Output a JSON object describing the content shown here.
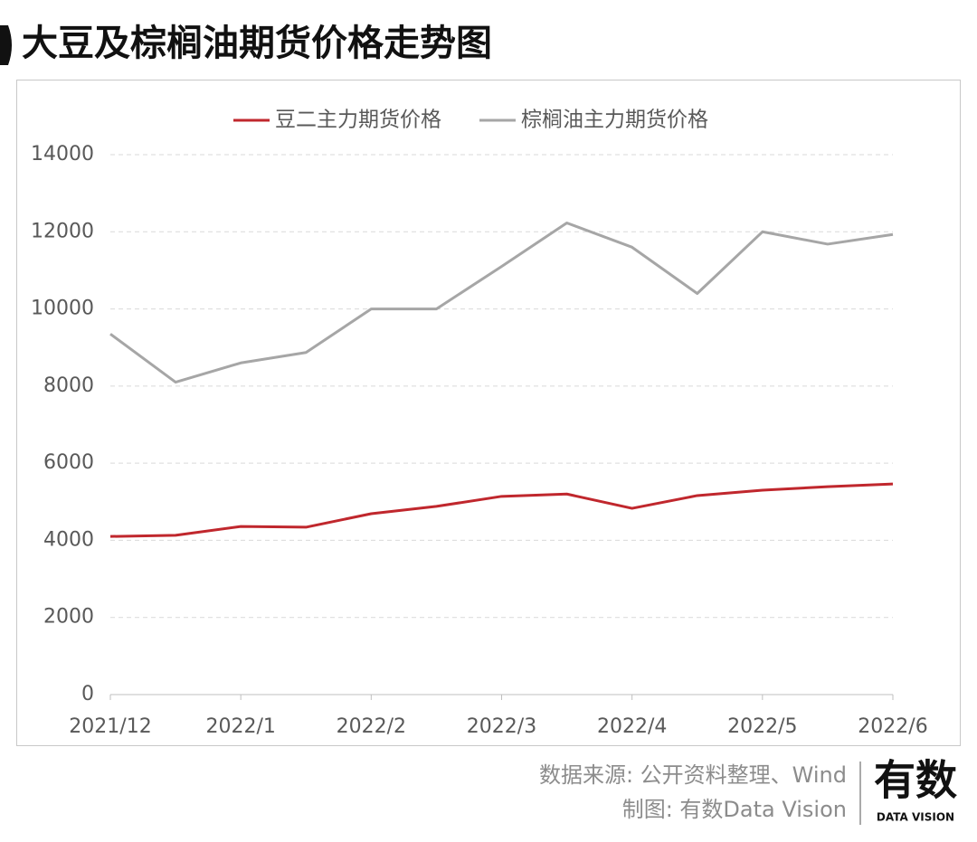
{
  "chart_data": {
    "type": "line",
    "title": "大豆及棕榈油期货价格走势图",
    "categories": [
      "2021/12",
      null,
      "2022/1",
      null,
      "2022/2",
      null,
      "2022/3",
      null,
      "2022/4",
      null,
      "2022/5",
      null,
      "2022/6"
    ],
    "series": [
      {
        "name": "豆二主力期货价格",
        "color": "#c0272d",
        "values": [
          4100,
          4130,
          4360,
          4340,
          4690,
          4880,
          5140,
          5200,
          4830,
          5160,
          5300,
          5390,
          5460
        ]
      },
      {
        "name": "棕榈油主力期货价格",
        "color": "#a6a6a6",
        "values": [
          9350,
          8100,
          8600,
          8870,
          10000,
          10000,
          11100,
          12230,
          11600,
          10400,
          12000,
          11680,
          11930
        ]
      }
    ],
    "ylim": [
      0,
      14000
    ],
    "yticks": [
      0,
      2000,
      4000,
      6000,
      8000,
      10000,
      12000,
      14000
    ],
    "grid": true,
    "legend": "top",
    "source": "数据来源: 公开资料整理、Wind",
    "credit": "制图: 有数Data Vision",
    "logo": {
      "name": "有数",
      "subtitle": "DATA VISION"
    }
  }
}
